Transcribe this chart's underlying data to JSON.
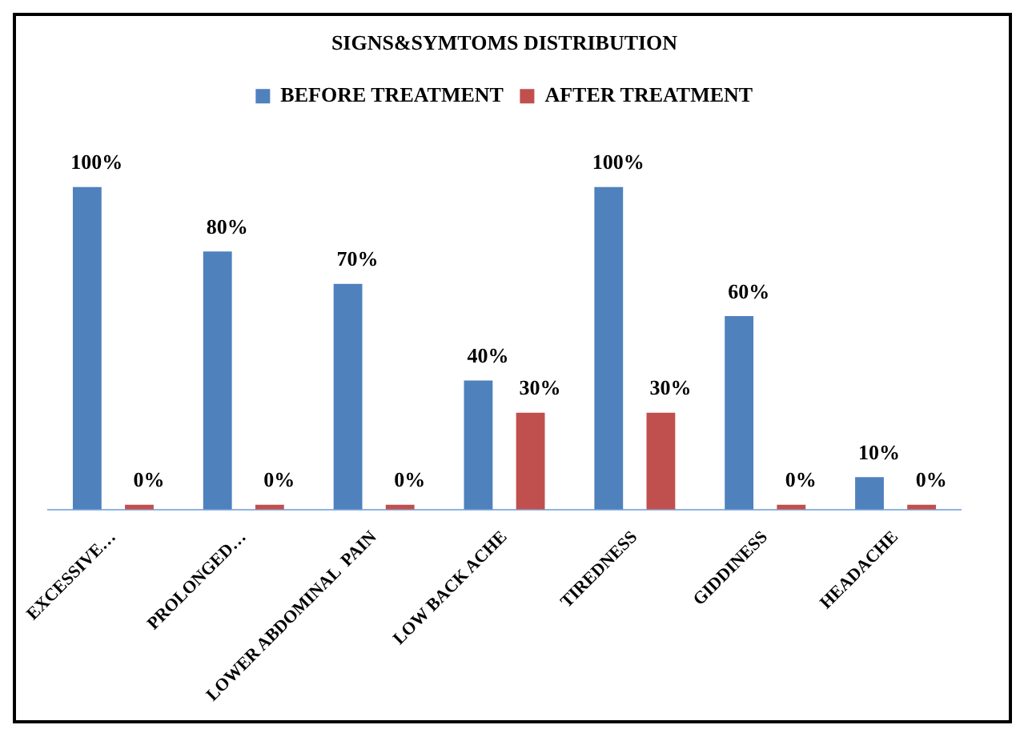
{
  "chart_data": {
    "type": "bar",
    "title": "SIGNS&SYMTOMS DISTRIBUTION",
    "categories": [
      "EXCESSIVE…",
      "PROLONGED…",
      "LOWER ABDOMINAL  PAIN",
      "LOW BACK ACHE",
      "TIREDNESS",
      "GIDDINESS",
      "HEADACHE"
    ],
    "series": [
      {
        "name": "BEFORE TREATMENT",
        "color": "#4f81bd",
        "values": [
          100,
          80,
          70,
          40,
          100,
          60,
          10
        ],
        "value_labels": [
          "100%",
          "80%",
          "70%",
          "40%",
          "100%",
          "60%",
          "10%"
        ]
      },
      {
        "name": "AFTER TREATMENT",
        "color": "#c0504d",
        "values": [
          0,
          0,
          0,
          30,
          30,
          0,
          0
        ],
        "value_labels": [
          "0%",
          "0%",
          "0%",
          "30%",
          "30%",
          "0%",
          "0%"
        ]
      }
    ],
    "legend": "top",
    "grid": false
  }
}
